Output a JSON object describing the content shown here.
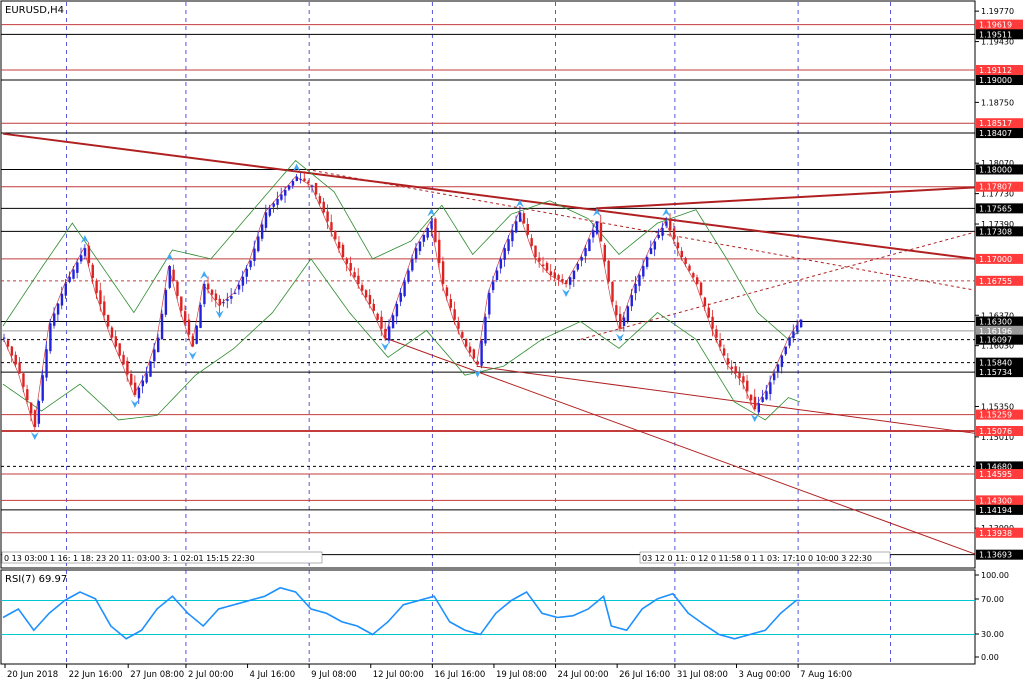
{
  "chart_data": {
    "type": "line",
    "title": "EURUSD,H4",
    "symbol": "EURUSD",
    "timeframe": "H4",
    "ylim": [
      1.136,
      1.1985
    ],
    "grid": true,
    "price_ticks": [
      "1.19770",
      "1.19430",
      "1.18750",
      "1.18070",
      "1.17730",
      "1.17390",
      "1.16370",
      "1.16030",
      "1.15350",
      "1.15010",
      "1.13990"
    ],
    "level_lines": [
      {
        "price": 1.19619,
        "label": "1.19619",
        "kind": "red",
        "tag_bg": "#ff3b3b"
      },
      {
        "price": 1.19511,
        "label": "1.19511",
        "kind": "black",
        "tag_bg": "#000000"
      },
      {
        "price": 1.19112,
        "label": "1.19112",
        "kind": "red",
        "tag_bg": "#ff3b3b"
      },
      {
        "price": 1.19,
        "label": "1.19000",
        "kind": "black",
        "tag_bg": "#000000"
      },
      {
        "price": 1.18517,
        "label": "1.18517",
        "kind": "red",
        "tag_bg": "#ff3b3b"
      },
      {
        "price": 1.18407,
        "label": "1.18407",
        "kind": "black",
        "tag_bg": "#000000"
      },
      {
        "price": 1.18,
        "label": "1.18000",
        "kind": "black",
        "tag_bg": "#000000"
      },
      {
        "price": 1.17807,
        "label": "1.17807",
        "kind": "red",
        "tag_bg": "#ff3b3b"
      },
      {
        "price": 1.17565,
        "label": "1.17565",
        "kind": "black",
        "tag_bg": "#000000"
      },
      {
        "price": 1.17308,
        "label": "1.17308",
        "kind": "black",
        "tag_bg": "#000000"
      },
      {
        "price": 1.17,
        "label": "1.17000",
        "kind": "red",
        "tag_bg": "#ff3b3b"
      },
      {
        "price": 1.16755,
        "label": "1.16755",
        "kind": "red-dash",
        "tag_bg": "#ff3b3b"
      },
      {
        "price": 1.163,
        "label": "1.16300",
        "kind": "black",
        "tag_bg": "#000000"
      },
      {
        "price": 1.16196,
        "label": "1.16196",
        "kind": "gray",
        "tag_bg": "#9a9a9a"
      },
      {
        "price": 1.16097,
        "label": "1.16097",
        "kind": "black-dash",
        "tag_bg": "#000000"
      },
      {
        "price": 1.1584,
        "label": "1.15840",
        "kind": "black-dash",
        "tag_bg": "#000000"
      },
      {
        "price": 1.15734,
        "label": "1.15734",
        "kind": "black",
        "tag_bg": "#000000"
      },
      {
        "price": 1.15259,
        "label": "1.15259",
        "kind": "red",
        "tag_bg": "#ff3b3b"
      },
      {
        "price": 1.15076,
        "label": "1.15076",
        "kind": "red-thick",
        "tag_bg": "#ff3b3b"
      },
      {
        "price": 1.1468,
        "label": "1.14680",
        "kind": "black-dash",
        "tag_bg": "#000000"
      },
      {
        "price": 1.14595,
        "label": "1.14595",
        "kind": "red",
        "tag_bg": "#ff3b3b"
      },
      {
        "price": 1.143,
        "label": "1.14300",
        "kind": "red",
        "tag_bg": "#ff3b3b"
      },
      {
        "price": 1.14194,
        "label": "1.14194",
        "kind": "black",
        "tag_bg": "#000000"
      },
      {
        "price": 1.13938,
        "label": "1.13938",
        "kind": "red",
        "tag_bg": "#ff3b3b"
      },
      {
        "price": 1.13693,
        "label": "1.13693",
        "kind": "black",
        "tag_bg": "#000000"
      }
    ],
    "x_labels": [
      {
        "label": "20 Jun 2018",
        "bar": 0
      },
      {
        "label": "22 Jun 16:00",
        "bar": 16
      },
      {
        "label": "27 Jun 08:00",
        "bar": 32
      },
      {
        "label": "2 Jul 00:00",
        "bar": 47
      },
      {
        "label": "4 Jul 16:00",
        "bar": 63
      },
      {
        "label": "9 Jul 08:00",
        "bar": 79
      },
      {
        "label": "12 Jul 00:00",
        "bar": 95
      },
      {
        "label": "16 Jul 16:00",
        "bar": 111
      },
      {
        "label": "19 Jul 08:00",
        "bar": 127
      },
      {
        "label": "24 Jul 00:00",
        "bar": 143
      },
      {
        "label": "26 Jul 16:00",
        "bar": 159
      },
      {
        "label": "31 Jul 08:00",
        "bar": 174
      },
      {
        "label": "3 Aug 00:00",
        "bar": 190
      },
      {
        "label": "7 Aug 16:00",
        "bar": 206
      }
    ],
    "price_path": [
      [
        0,
        1.1612
      ],
      [
        4,
        1.1572
      ],
      [
        8,
        1.1512
      ],
      [
        12,
        1.1628
      ],
      [
        16,
        1.1672
      ],
      [
        21,
        1.1712
      ],
      [
        24,
        1.1662
      ],
      [
        28,
        1.1612
      ],
      [
        31,
        1.1582
      ],
      [
        34,
        1.1548
      ],
      [
        37,
        1.1572
      ],
      [
        40,
        1.1612
      ],
      [
        43,
        1.1692
      ],
      [
        46,
        1.1642
      ],
      [
        49,
        1.1602
      ],
      [
        52,
        1.1672
      ],
      [
        56,
        1.1648
      ],
      [
        60,
        1.1662
      ],
      [
        64,
        1.1698
      ],
      [
        68,
        1.1752
      ],
      [
        72,
        1.1772
      ],
      [
        76,
        1.1792
      ],
      [
        80,
        1.1782
      ],
      [
        84,
        1.1742
      ],
      [
        88,
        1.1702
      ],
      [
        92,
        1.1672
      ],
      [
        96,
        1.1642
      ],
      [
        99,
        1.1612
      ],
      [
        103,
        1.1662
      ],
      [
        107,
        1.1712
      ],
      [
        111,
        1.1742
      ],
      [
        114,
        1.1672
      ],
      [
        117,
        1.1632
      ],
      [
        120,
        1.1602
      ],
      [
        123,
        1.1582
      ],
      [
        126,
        1.1662
      ],
      [
        130,
        1.1712
      ],
      [
        134,
        1.1752
      ],
      [
        138,
        1.1702
      ],
      [
        142,
        1.1682
      ],
      [
        146,
        1.1672
      ],
      [
        150,
        1.1702
      ],
      [
        154,
        1.1742
      ],
      [
        158,
        1.1652
      ],
      [
        160,
        1.1622
      ],
      [
        164,
        1.1672
      ],
      [
        168,
        1.1712
      ],
      [
        172,
        1.1742
      ],
      [
        176,
        1.1702
      ],
      [
        180,
        1.1672
      ],
      [
        184,
        1.1622
      ],
      [
        188,
        1.1582
      ],
      [
        192,
        1.1562
      ],
      [
        195,
        1.1532
      ],
      [
        198,
        1.1552
      ],
      [
        201,
        1.1582
      ],
      [
        204,
        1.1612
      ],
      [
        207,
        1.1632
      ]
    ],
    "upper_band": [
      [
        0,
        1.1625
      ],
      [
        10,
        1.169
      ],
      [
        18,
        1.174
      ],
      [
        26,
        1.169
      ],
      [
        34,
        1.164
      ],
      [
        44,
        1.171
      ],
      [
        54,
        1.17
      ],
      [
        66,
        1.176
      ],
      [
        76,
        1.181
      ],
      [
        86,
        1.1775
      ],
      [
        96,
        1.17
      ],
      [
        106,
        1.172
      ],
      [
        114,
        1.176
      ],
      [
        122,
        1.1705
      ],
      [
        132,
        1.175
      ],
      [
        142,
        1.1765
      ],
      [
        152,
        1.1745
      ],
      [
        160,
        1.1705
      ],
      [
        170,
        1.174
      ],
      [
        180,
        1.1755
      ],
      [
        188,
        1.17
      ],
      [
        196,
        1.164
      ],
      [
        204,
        1.161
      ],
      [
        207,
        1.162
      ]
    ],
    "lower_band": [
      [
        0,
        1.156
      ],
      [
        10,
        1.153
      ],
      [
        20,
        1.156
      ],
      [
        30,
        1.152
      ],
      [
        40,
        1.1525
      ],
      [
        50,
        1.157
      ],
      [
        60,
        1.16
      ],
      [
        70,
        1.164
      ],
      [
        80,
        1.17
      ],
      [
        90,
        1.164
      ],
      [
        100,
        1.159
      ],
      [
        110,
        1.162
      ],
      [
        120,
        1.157
      ],
      [
        130,
        1.158
      ],
      [
        140,
        1.161
      ],
      [
        150,
        1.163
      ],
      [
        160,
        1.16
      ],
      [
        170,
        1.164
      ],
      [
        180,
        1.161
      ],
      [
        190,
        1.154
      ],
      [
        198,
        1.152
      ],
      [
        204,
        1.1545
      ],
      [
        207,
        1.154
      ]
    ],
    "rsi": {
      "label": "RSI(7) 69.97",
      "levels": [
        70,
        30
      ],
      "ticks": [
        "100.00",
        "70.00",
        "30.00",
        "0.00"
      ],
      "values": [
        [
          0,
          50
        ],
        [
          4,
          60
        ],
        [
          8,
          35
        ],
        [
          12,
          55
        ],
        [
          16,
          70
        ],
        [
          20,
          80
        ],
        [
          24,
          72
        ],
        [
          28,
          40
        ],
        [
          32,
          25
        ],
        [
          36,
          35
        ],
        [
          40,
          60
        ],
        [
          44,
          75
        ],
        [
          48,
          55
        ],
        [
          52,
          40
        ],
        [
          56,
          60
        ],
        [
          60,
          65
        ],
        [
          64,
          70
        ],
        [
          68,
          75
        ],
        [
          72,
          85
        ],
        [
          76,
          80
        ],
        [
          80,
          60
        ],
        [
          84,
          55
        ],
        [
          88,
          45
        ],
        [
          92,
          40
        ],
        [
          96,
          30
        ],
        [
          100,
          45
        ],
        [
          104,
          65
        ],
        [
          108,
          70
        ],
        [
          112,
          75
        ],
        [
          116,
          45
        ],
        [
          120,
          35
        ],
        [
          124,
          30
        ],
        [
          128,
          55
        ],
        [
          132,
          70
        ],
        [
          136,
          80
        ],
        [
          140,
          55
        ],
        [
          144,
          50
        ],
        [
          148,
          52
        ],
        [
          152,
          60
        ],
        [
          156,
          75
        ],
        [
          158,
          40
        ],
        [
          162,
          35
        ],
        [
          166,
          60
        ],
        [
          170,
          72
        ],
        [
          174,
          78
        ],
        [
          178,
          55
        ],
        [
          182,
          42
        ],
        [
          186,
          30
        ],
        [
          190,
          25
        ],
        [
          194,
          30
        ],
        [
          198,
          35
        ],
        [
          202,
          55
        ],
        [
          206,
          70
        ],
        [
          207,
          70
        ]
      ]
    },
    "time_strip_left": "0 13 03:00 1 16: 1 18: 23 20 11: 03:00 3: 1 02:01 15:15 22:30",
    "time_strip_right": "03 12 0 11: 0 12 0 11:58 0 1 1 03: 17:10 0 10:00 3 22:30"
  },
  "colors": {
    "background": "#ffffff",
    "grid": "#2b2bd8",
    "bull": "#2222dd",
    "bear": "#dd2222",
    "band": "#2e8b2e",
    "trendline": "#b02020",
    "rsi": "#1e90ff",
    "rsi_level": "#00c8d2",
    "arrow": "#3fa9f5"
  }
}
